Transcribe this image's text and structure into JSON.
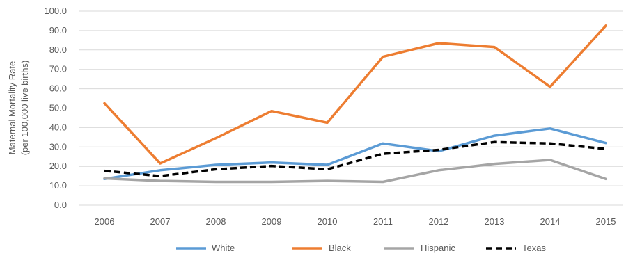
{
  "chart_data": {
    "type": "line",
    "title": "",
    "xlabel": "",
    "ylabel_lines": [
      "Maternal Mortality Rate",
      "(per 100,000 live births)"
    ],
    "categories": [
      "2006",
      "2007",
      "2008",
      "2009",
      "2010",
      "2011",
      "2012",
      "2013",
      "2014",
      "2015"
    ],
    "ylim": [
      0,
      100
    ],
    "yticks": [
      "0.0",
      "10.0",
      "20.0",
      "30.0",
      "40.0",
      "50.0",
      "60.0",
      "70.0",
      "80.0",
      "90.0",
      "100.0"
    ],
    "grid": true,
    "legend_position": "bottom",
    "series": [
      {
        "name": "White",
        "color": "#5b9bd5",
        "dash": "solid",
        "values": [
          13.5,
          18.0,
          20.8,
          22.0,
          20.8,
          31.8,
          27.8,
          35.8,
          39.5,
          32.0
        ]
      },
      {
        "name": "Black",
        "color": "#ed7d31",
        "dash": "solid",
        "values": [
          52.5,
          21.5,
          34.5,
          48.5,
          42.5,
          76.5,
          83.5,
          81.5,
          61.0,
          92.5
        ]
      },
      {
        "name": "Hispanic",
        "color": "#a5a5a5",
        "dash": "solid",
        "values": [
          13.8,
          12.5,
          12.0,
          12.0,
          12.5,
          12.0,
          18.0,
          21.3,
          23.3,
          13.5
        ]
      },
      {
        "name": "Texas",
        "color": "#000000",
        "dash": "dashed",
        "values": [
          17.7,
          15.0,
          18.5,
          20.2,
          18.5,
          26.5,
          28.5,
          32.5,
          31.8,
          29.0
        ]
      }
    ]
  }
}
